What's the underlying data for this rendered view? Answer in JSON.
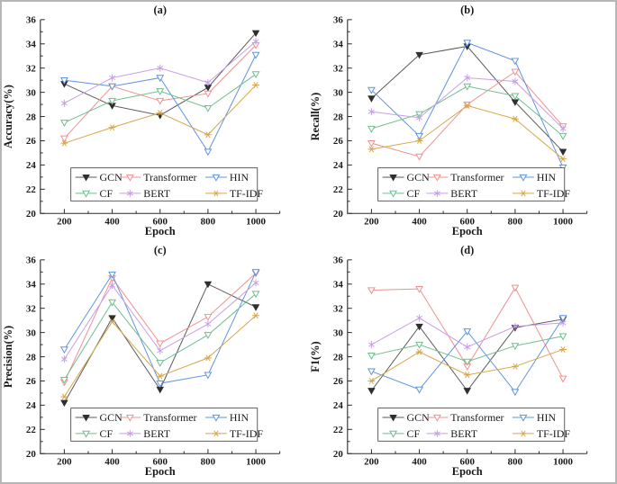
{
  "figure": {
    "background": "#ffffff",
    "border_color": "#b6b6b6",
    "axis_color": "#2b2b2b",
    "text_color": "#1a1a1a"
  },
  "legend": {
    "labels": [
      "GCN",
      "Transformer",
      "HIN",
      "CF",
      "BERT",
      "TF-IDF"
    ],
    "position": "inside-bottom-center",
    "rows": 2,
    "columns": 3
  },
  "series_styles": [
    {
      "name": "GCN",
      "color": "#5a5a5a",
      "marker_color": "#2f2f2f",
      "marker": "triangle-filled"
    },
    {
      "name": "Transformer",
      "color": "#f0908f",
      "marker_color": "#f0908f",
      "marker": "triangle-open"
    },
    {
      "name": "HIN",
      "color": "#5e94de",
      "marker_color": "#5e94de",
      "marker": "triangle-open"
    },
    {
      "name": "CF",
      "color": "#6fbd8f",
      "marker_color": "#6fbd8f",
      "marker": "triangle-open"
    },
    {
      "name": "BERT",
      "color": "#c89fe5",
      "marker_color": "#c89fe5",
      "marker": "star-vertical"
    },
    {
      "name": "TF-IDF",
      "color": "#d6a74a",
      "marker_color": "#d6a74a",
      "marker": "star-horizontal"
    }
  ],
  "chart_data": [
    {
      "type": "line",
      "title": "(a)",
      "xlabel": "Epoch",
      "ylabel": "Accuracy(%)",
      "x": [
        200,
        400,
        600,
        800,
        1000
      ],
      "xlim": [
        100,
        1100
      ],
      "ylim": [
        20,
        36
      ],
      "y_tick_step": 2,
      "grid": false,
      "series": [
        {
          "name": "GCN",
          "values": [
            30.7,
            28.9,
            28.1,
            30.4,
            34.9
          ]
        },
        {
          "name": "Transformer",
          "values": [
            26.2,
            30.5,
            29.3,
            29.9,
            33.9
          ]
        },
        {
          "name": "HIN",
          "values": [
            31.0,
            30.5,
            31.2,
            25.1,
            33.1
          ]
        },
        {
          "name": "CF",
          "values": [
            27.5,
            29.3,
            30.1,
            28.7,
            31.5
          ]
        },
        {
          "name": "BERT",
          "values": [
            29.1,
            31.2,
            32.0,
            30.8,
            34.2
          ]
        },
        {
          "name": "TF-IDF",
          "values": [
            25.8,
            27.1,
            28.3,
            26.5,
            30.6
          ]
        }
      ]
    },
    {
      "type": "line",
      "title": "(b)",
      "xlabel": "Epoch",
      "ylabel": "Recall(%)",
      "x": [
        200,
        400,
        600,
        800,
        1000
      ],
      "xlim": [
        100,
        1100
      ],
      "ylim": [
        20,
        36
      ],
      "y_tick_step": 2,
      "grid": false,
      "series": [
        {
          "name": "GCN",
          "values": [
            29.5,
            33.1,
            33.8,
            29.2,
            25.1
          ]
        },
        {
          "name": "Transformer",
          "values": [
            25.8,
            24.7,
            29.0,
            31.7,
            27.2
          ]
        },
        {
          "name": "HIN",
          "values": [
            30.2,
            26.4,
            34.1,
            32.6,
            23.8
          ]
        },
        {
          "name": "CF",
          "values": [
            27.0,
            28.2,
            30.5,
            29.7,
            26.4
          ]
        },
        {
          "name": "BERT",
          "values": [
            28.4,
            27.9,
            31.2,
            30.9,
            27.0
          ]
        },
        {
          "name": "TF-IDF",
          "values": [
            25.3,
            26.0,
            28.9,
            27.8,
            24.5
          ]
        }
      ]
    },
    {
      "type": "line",
      "title": "(c)",
      "xlabel": "Epoch",
      "ylabel": "Precision(%)",
      "x": [
        200,
        400,
        600,
        800,
        1000
      ],
      "xlim": [
        100,
        1100
      ],
      "ylim": [
        20,
        36
      ],
      "y_tick_step": 2,
      "grid": false,
      "series": [
        {
          "name": "GCN",
          "values": [
            24.2,
            31.2,
            25.3,
            34.0,
            32.1
          ]
        },
        {
          "name": "Transformer",
          "values": [
            25.9,
            34.5,
            29.1,
            31.3,
            34.9
          ]
        },
        {
          "name": "HIN",
          "values": [
            28.6,
            34.8,
            25.8,
            26.5,
            35.0
          ]
        },
        {
          "name": "CF",
          "values": [
            26.1,
            32.5,
            27.5,
            29.8,
            33.2
          ]
        },
        {
          "name": "BERT",
          "values": [
            27.8,
            33.9,
            28.5,
            30.7,
            34.1
          ]
        },
        {
          "name": "TF-IDF",
          "values": [
            24.7,
            30.9,
            26.4,
            27.9,
            31.4
          ]
        }
      ]
    },
    {
      "type": "line",
      "title": "(d)",
      "xlabel": "Epoch",
      "ylabel": "F1(%)",
      "x": [
        200,
        400,
        600,
        800,
        1000
      ],
      "xlim": [
        100,
        1100
      ],
      "ylim": [
        20,
        36
      ],
      "y_tick_step": 2,
      "grid": false,
      "series": [
        {
          "name": "GCN",
          "values": [
            25.2,
            30.5,
            25.2,
            30.4,
            31.1
          ]
        },
        {
          "name": "Transformer",
          "values": [
            33.5,
            33.6,
            27.2,
            33.7,
            26.2
          ]
        },
        {
          "name": "HIN",
          "values": [
            26.8,
            25.3,
            30.1,
            25.1,
            31.2
          ]
        },
        {
          "name": "CF",
          "values": [
            28.1,
            29.0,
            27.6,
            28.9,
            29.7
          ]
        },
        {
          "name": "BERT",
          "values": [
            29.0,
            31.2,
            28.8,
            30.5,
            30.8
          ]
        },
        {
          "name": "TF-IDF",
          "values": [
            26.0,
            28.4,
            26.5,
            27.2,
            28.6
          ]
        }
      ]
    }
  ]
}
